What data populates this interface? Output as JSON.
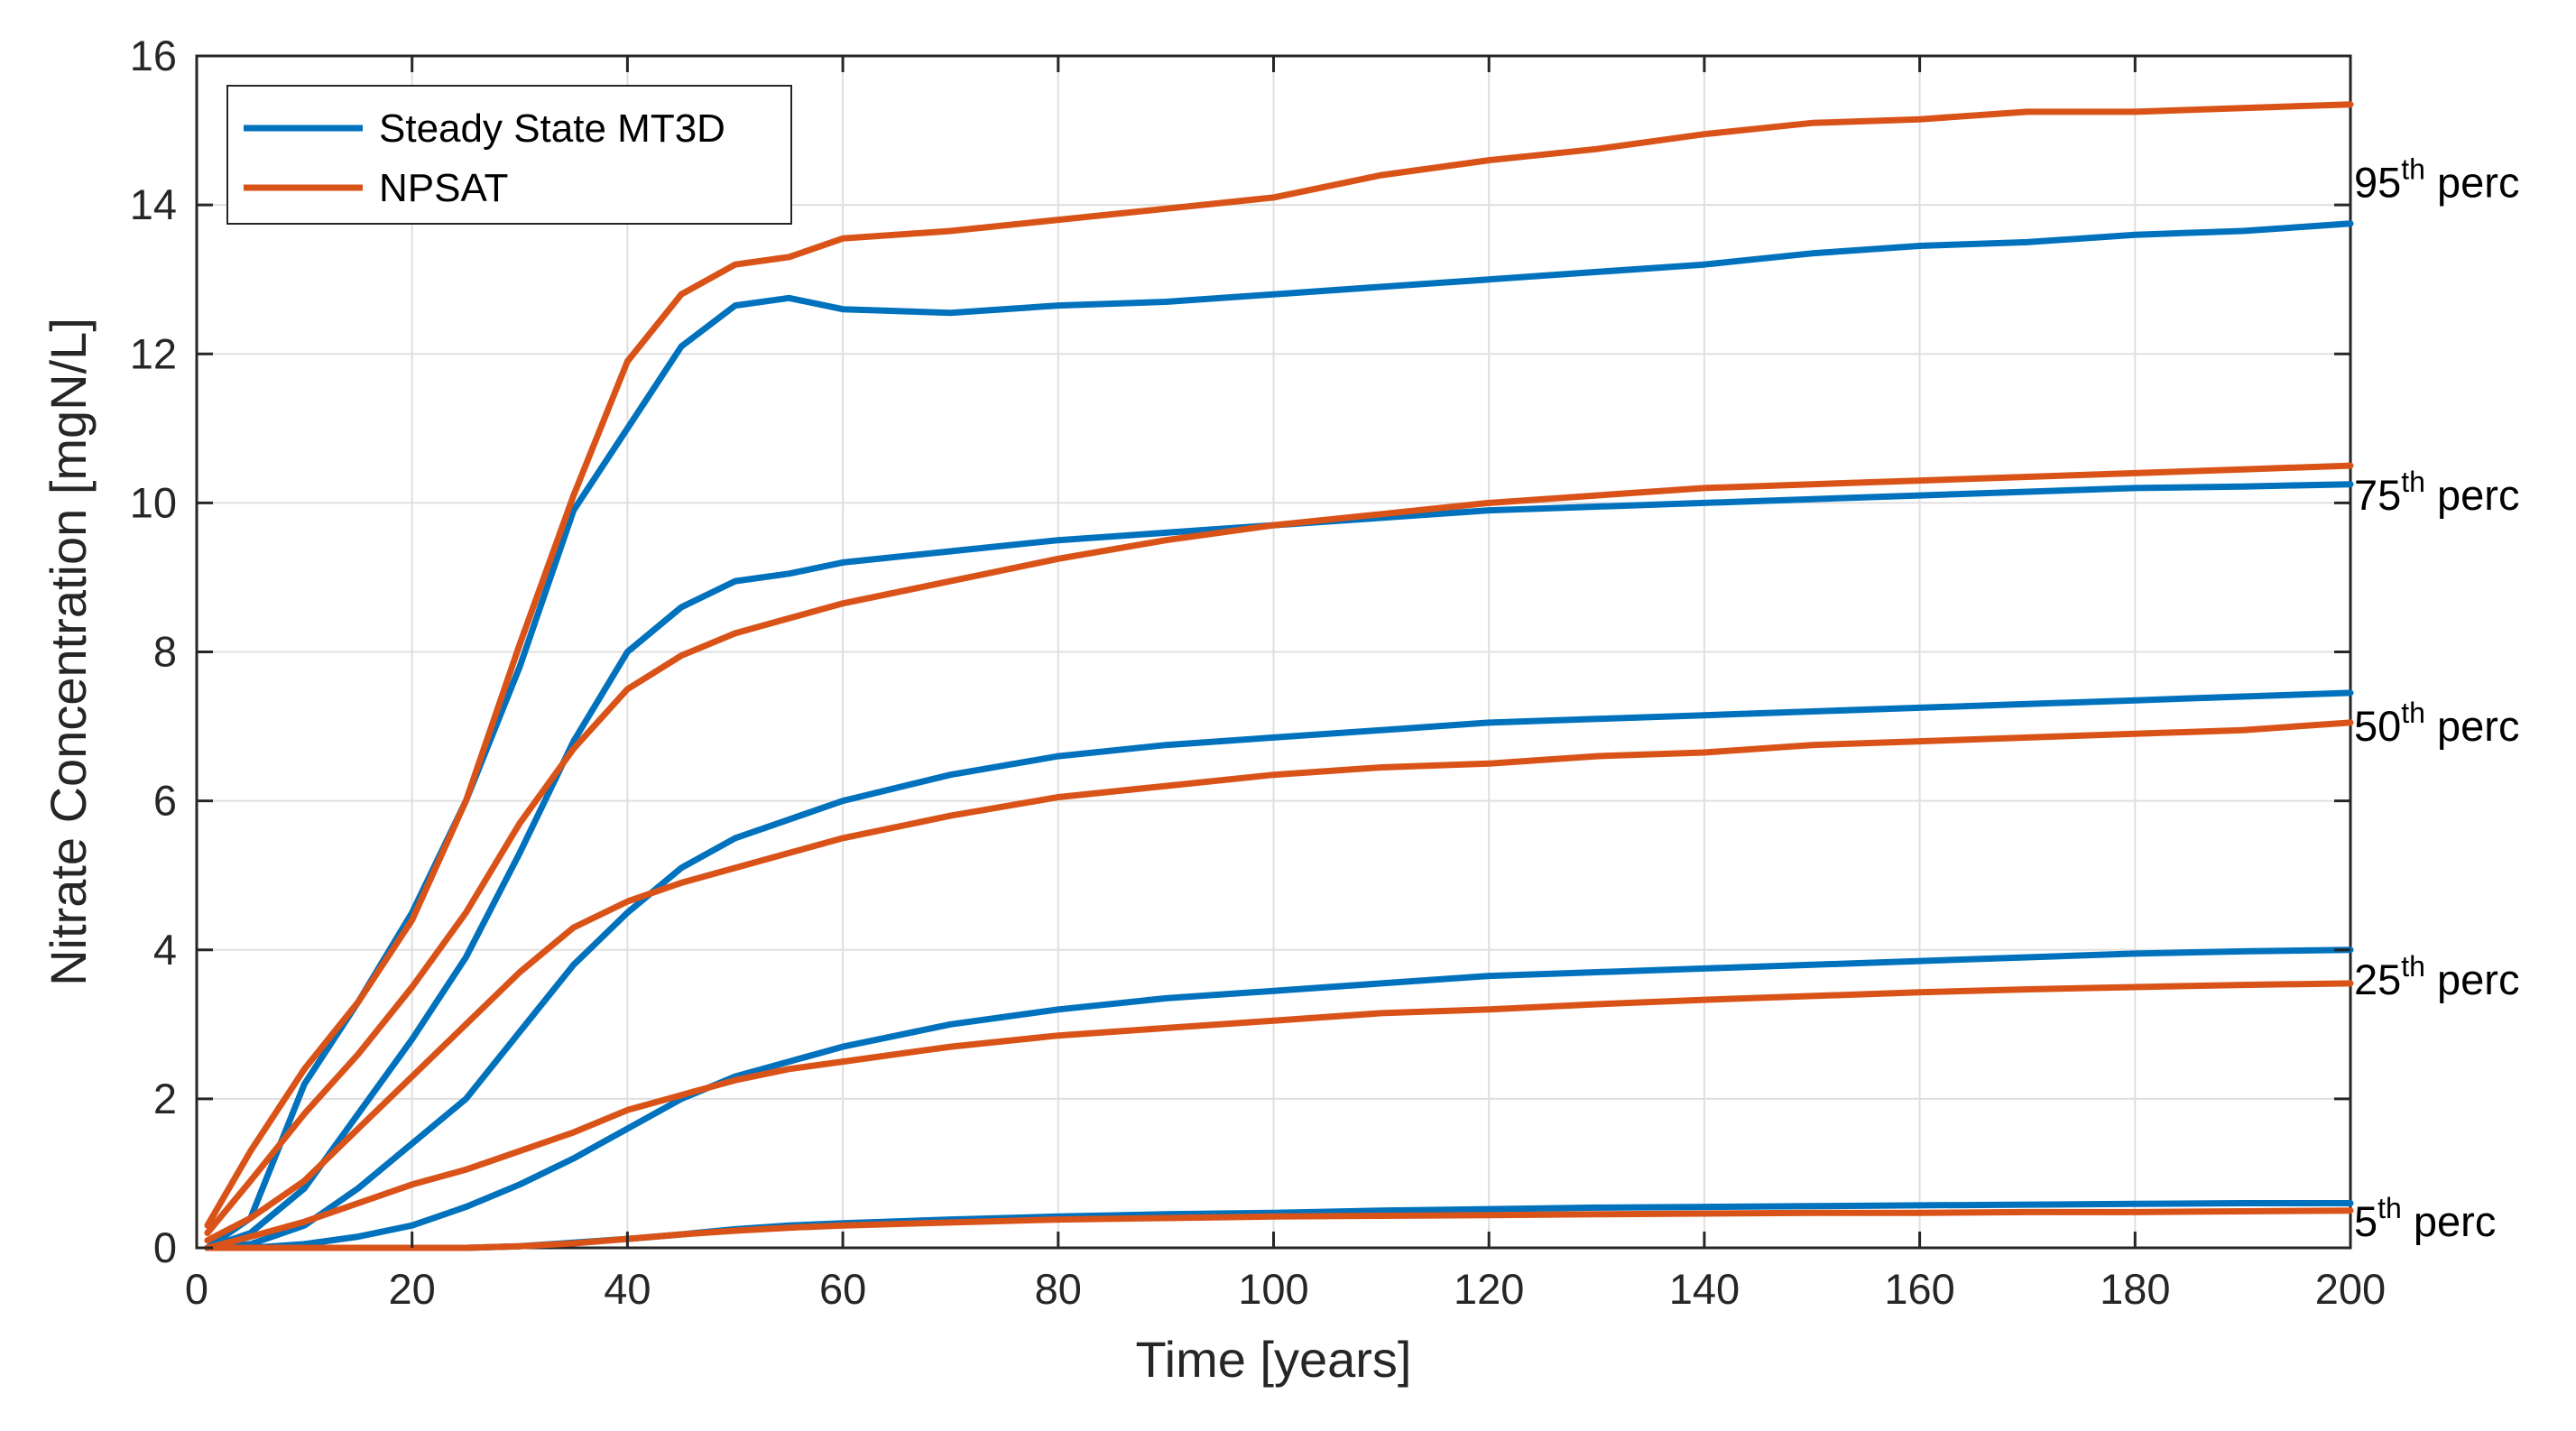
{
  "colors": {
    "mt3d": "#0072BD",
    "npsat": "#D95319",
    "grid": "#dfdfdf",
    "axis": "#262626"
  },
  "chart_data": {
    "type": "line",
    "title": "",
    "xlabel": "Time [years]",
    "ylabel": "Nitrate Concentration [mgN/L]",
    "xlim": [
      0,
      200
    ],
    "ylim": [
      0,
      16
    ],
    "xticks": [
      0,
      20,
      40,
      60,
      80,
      100,
      120,
      140,
      160,
      180,
      200
    ],
    "yticks": [
      0,
      2,
      4,
      6,
      8,
      10,
      12,
      14,
      16
    ],
    "grid": true,
    "legend": {
      "position": "top-left",
      "entries": [
        "Steady State MT3D",
        "NPSAT"
      ]
    },
    "percentile_labels": [
      {
        "num": "95",
        "sup": "th",
        "text": "perc",
        "y": 14.3
      },
      {
        "num": "75",
        "sup": "th",
        "text": "perc",
        "y": 10.1
      },
      {
        "num": "50",
        "sup": "th",
        "text": "perc",
        "y": 7.0
      },
      {
        "num": "25",
        "sup": "th",
        "text": "perc",
        "y": 3.6
      },
      {
        "num": "5",
        "sup": "th",
        "text": "perc",
        "y": 0.35
      }
    ],
    "x": [
      1,
      5,
      10,
      15,
      20,
      25,
      30,
      35,
      40,
      45,
      50,
      55,
      60,
      70,
      80,
      90,
      100,
      110,
      120,
      130,
      140,
      150,
      160,
      170,
      180,
      190,
      200
    ],
    "series": [
      {
        "name": "Steady State MT3D",
        "percentile": "95th",
        "color_key": "mt3d",
        "values": [
          0,
          0.4,
          2.2,
          3.3,
          4.5,
          6.0,
          7.8,
          9.9,
          11.0,
          12.1,
          12.65,
          12.75,
          12.6,
          12.55,
          12.65,
          12.7,
          12.8,
          12.9,
          13.0,
          13.1,
          13.2,
          13.35,
          13.45,
          13.5,
          13.6,
          13.65,
          13.75
        ]
      },
      {
        "name": "NPSAT",
        "percentile": "95th",
        "color_key": "npsat",
        "values": [
          0.3,
          1.3,
          2.4,
          3.3,
          4.4,
          6.0,
          8.1,
          10.1,
          11.9,
          12.8,
          13.2,
          13.3,
          13.55,
          13.65,
          13.8,
          13.95,
          14.1,
          14.4,
          14.6,
          14.75,
          14.95,
          15.1,
          15.15,
          15.25,
          15.25,
          15.3,
          15.35
        ]
      },
      {
        "name": "Steady State MT3D",
        "percentile": "75th",
        "color_key": "mt3d",
        "values": [
          0,
          0.2,
          0.8,
          1.8,
          2.8,
          3.9,
          5.3,
          6.8,
          8.0,
          8.6,
          8.95,
          9.05,
          9.2,
          9.35,
          9.5,
          9.6,
          9.7,
          9.8,
          9.9,
          9.95,
          10.0,
          10.05,
          10.1,
          10.15,
          10.2,
          10.22,
          10.25
        ]
      },
      {
        "name": "NPSAT",
        "percentile": "75th",
        "color_key": "npsat",
        "values": [
          0.2,
          0.9,
          1.8,
          2.6,
          3.5,
          4.5,
          5.7,
          6.7,
          7.5,
          7.95,
          8.25,
          8.45,
          8.65,
          8.95,
          9.25,
          9.5,
          9.7,
          9.85,
          10.0,
          10.1,
          10.2,
          10.25,
          10.3,
          10.35,
          10.4,
          10.45,
          10.5
        ]
      },
      {
        "name": "Steady State MT3D",
        "percentile": "50th",
        "color_key": "mt3d",
        "values": [
          0,
          0.05,
          0.3,
          0.8,
          1.4,
          2.0,
          2.9,
          3.8,
          4.5,
          5.1,
          5.5,
          5.75,
          6.0,
          6.35,
          6.6,
          6.75,
          6.85,
          6.95,
          7.05,
          7.1,
          7.15,
          7.2,
          7.25,
          7.3,
          7.35,
          7.4,
          7.45
        ]
      },
      {
        "name": "NPSAT",
        "percentile": "50th",
        "color_key": "npsat",
        "values": [
          0.1,
          0.4,
          0.9,
          1.6,
          2.3,
          3.0,
          3.7,
          4.3,
          4.65,
          4.9,
          5.1,
          5.3,
          5.5,
          5.8,
          6.05,
          6.2,
          6.35,
          6.45,
          6.5,
          6.6,
          6.65,
          6.75,
          6.8,
          6.85,
          6.9,
          6.95,
          7.05
        ]
      },
      {
        "name": "Steady State MT3D",
        "percentile": "25th",
        "color_key": "mt3d",
        "values": [
          0,
          0,
          0.05,
          0.15,
          0.3,
          0.55,
          0.85,
          1.2,
          1.6,
          2.0,
          2.3,
          2.5,
          2.7,
          3.0,
          3.2,
          3.35,
          3.45,
          3.55,
          3.65,
          3.7,
          3.75,
          3.8,
          3.85,
          3.9,
          3.95,
          3.98,
          4.0
        ]
      },
      {
        "name": "NPSAT",
        "percentile": "25th",
        "color_key": "npsat",
        "values": [
          0,
          0.15,
          0.35,
          0.6,
          0.85,
          1.05,
          1.3,
          1.55,
          1.85,
          2.05,
          2.25,
          2.4,
          2.5,
          2.7,
          2.85,
          2.95,
          3.05,
          3.15,
          3.2,
          3.27,
          3.33,
          3.38,
          3.43,
          3.47,
          3.5,
          3.53,
          3.55
        ]
      },
      {
        "name": "Steady State MT3D",
        "percentile": "5th",
        "color_key": "mt3d",
        "values": [
          0,
          0,
          0,
          0,
          0,
          0,
          0.02,
          0.07,
          0.12,
          0.18,
          0.25,
          0.3,
          0.33,
          0.38,
          0.42,
          0.45,
          0.47,
          0.5,
          0.52,
          0.54,
          0.55,
          0.56,
          0.57,
          0.58,
          0.59,
          0.6,
          0.6
        ]
      },
      {
        "name": "NPSAT",
        "percentile": "5th",
        "color_key": "npsat",
        "values": [
          0,
          0,
          0,
          0,
          0,
          0,
          0.02,
          0.06,
          0.12,
          0.18,
          0.23,
          0.27,
          0.3,
          0.34,
          0.38,
          0.4,
          0.42,
          0.43,
          0.44,
          0.45,
          0.46,
          0.47,
          0.47,
          0.48,
          0.48,
          0.49,
          0.5
        ]
      }
    ]
  }
}
